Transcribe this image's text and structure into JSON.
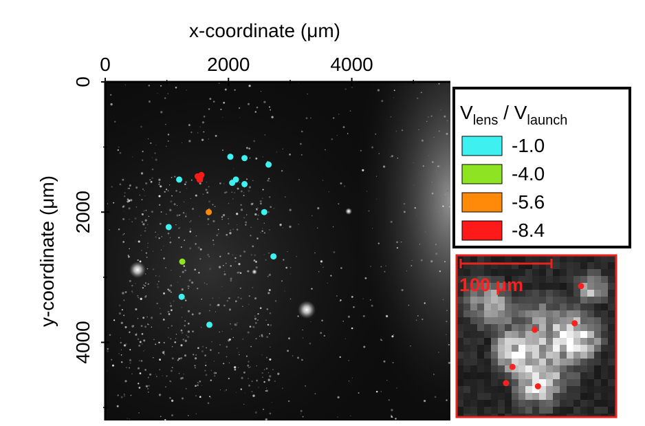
{
  "colors": {
    "background_dark": "#0c0c0c",
    "border_red": "#e8231f",
    "marker_red": "#ff2020"
  },
  "chart_data": {
    "type": "scatter",
    "xlabel": "x-coordinate (μm)",
    "ylabel": "y-coordinate (μm)",
    "xlim": [
      0,
      5600
    ],
    "ylim": [
      0,
      5200
    ],
    "x_axis_position": "top",
    "y_axis_inverted": true,
    "x_ticks": [
      0,
      2000,
      4000
    ],
    "y_ticks": [
      0,
      2000,
      4000
    ],
    "grid": false,
    "background": "fluorescence microscopy image (grayscale)",
    "legend": {
      "title_main_1": "V",
      "title_sub_1": "lens",
      "title_sep": " / V",
      "title_sub_2": "launch",
      "placement": "right",
      "entries": [
        {
          "label": "-1.0",
          "color": "#3ef0f0"
        },
        {
          "label": "-4.0",
          "color": "#8ee322"
        },
        {
          "label": "-5.6",
          "color": "#ff8a0a"
        },
        {
          "label": "-8.4",
          "color": "#ff1a1a"
        }
      ]
    },
    "series": [
      {
        "name": "-1.0",
        "color": "#3ef0f0",
        "points": [
          {
            "x": 1200,
            "y": 1500
          },
          {
            "x": 2030,
            "y": 1150
          },
          {
            "x": 2260,
            "y": 1170
          },
          {
            "x": 2650,
            "y": 1270
          },
          {
            "x": 2060,
            "y": 1550
          },
          {
            "x": 2120,
            "y": 1500
          },
          {
            "x": 2260,
            "y": 1570
          },
          {
            "x": 2580,
            "y": 2000
          },
          {
            "x": 1030,
            "y": 2230
          },
          {
            "x": 2730,
            "y": 2680
          },
          {
            "x": 1240,
            "y": 3300
          },
          {
            "x": 1690,
            "y": 3730
          }
        ]
      },
      {
        "name": "-4.0",
        "color": "#8ee322",
        "points": [
          {
            "x": 1250,
            "y": 2760
          }
        ]
      },
      {
        "name": "-5.6",
        "color": "#ff8a0a",
        "points": [
          {
            "x": 1680,
            "y": 2000
          }
        ]
      },
      {
        "name": "-8.4",
        "color": "#ff1a1a",
        "points": [
          {
            "x": 1500,
            "y": 1450
          },
          {
            "x": 1530,
            "y": 1500
          },
          {
            "x": 1560,
            "y": 1430
          },
          {
            "x": 1540,
            "y": 1480
          }
        ]
      }
    ],
    "inset": {
      "scale_bar_label": "100 μm",
      "points": [
        {
          "x": 0.78,
          "y": 0.19
        },
        {
          "x": 0.49,
          "y": 0.46
        },
        {
          "x": 0.74,
          "y": 0.42
        },
        {
          "x": 0.35,
          "y": 0.69
        },
        {
          "x": 0.31,
          "y": 0.79
        },
        {
          "x": 0.51,
          "y": 0.81
        }
      ]
    }
  }
}
